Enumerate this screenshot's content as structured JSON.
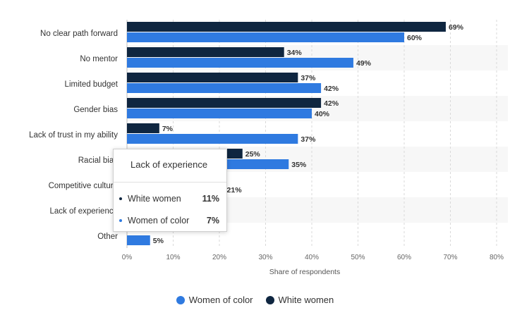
{
  "chart_data": {
    "type": "bar",
    "orientation": "horizontal",
    "categories": [
      "No clear path forward",
      "No mentor",
      "Limited budget",
      "Gender bias",
      "Lack of trust in my ability",
      "Racial bias",
      "Competitive culture",
      "Lack of experience",
      "Other"
    ],
    "series": [
      {
        "name": "White women",
        "color": "#0f2640",
        "values": [
          69,
          34,
          37,
          42,
          7,
          25,
          null,
          null,
          null
        ],
        "labels": [
          "69%",
          "34%",
          "37%",
          "42%",
          "7%",
          "25%",
          "",
          "",
          ""
        ]
      },
      {
        "name": "Women of color",
        "color": "#2f7ae0",
        "values": [
          60,
          49,
          42,
          40,
          37,
          35,
          21,
          null,
          5
        ],
        "labels": [
          "60%",
          "49%",
          "42%",
          "40%",
          "37%",
          "35%",
          "21%",
          "",
          "5%"
        ]
      }
    ],
    "xlabel": "Share of respondents",
    "xlim": [
      0,
      80
    ],
    "ticks": [
      "0%",
      "10%",
      "20%",
      "30%",
      "40%",
      "50%",
      "60%",
      "70%",
      "80%"
    ],
    "legend_order": [
      "Women of color",
      "White women"
    ]
  },
  "tooltip": {
    "title": "Lack of experience",
    "rows": [
      {
        "label": "White women",
        "value": "11%",
        "color": "#0f2640"
      },
      {
        "label": "Women of color",
        "value": "7%",
        "color": "#2f7ae0"
      }
    ]
  }
}
